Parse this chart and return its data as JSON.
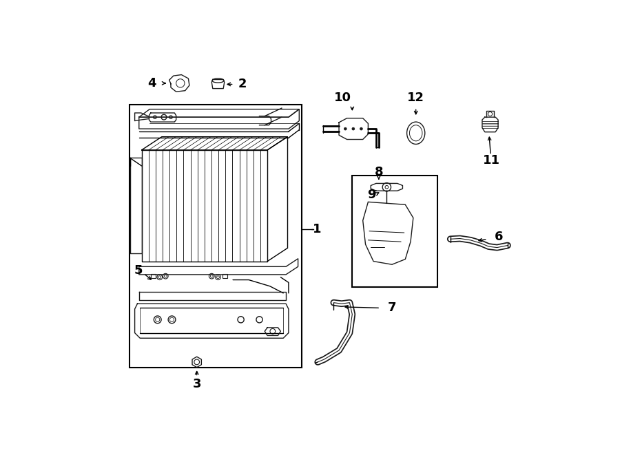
{
  "bg_color": "#ffffff",
  "line_color": "#1a1a1a",
  "lw": 1.0,
  "fig_w": 9.0,
  "fig_h": 6.61,
  "dpi": 100,
  "label_fs": 13
}
